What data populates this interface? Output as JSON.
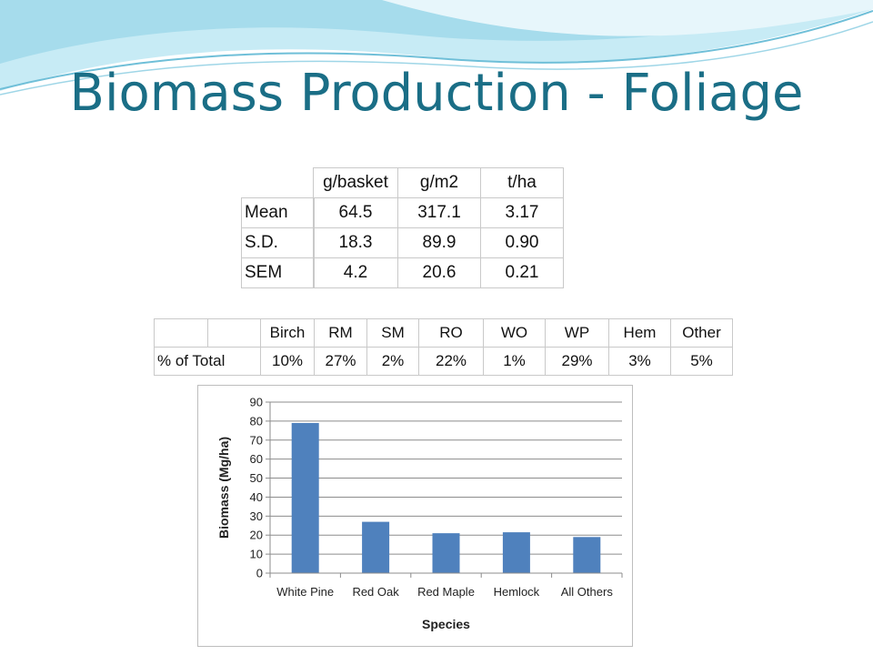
{
  "slide": {
    "title": "Biomass Production - Foliage",
    "colors": {
      "title": "#1a6e86",
      "wave_light": "#bfe6f2",
      "wave_mid": "#8fd0e6",
      "bar": "#4f81bd"
    }
  },
  "stats_table": {
    "headers": [
      "g/basket",
      "g/m2",
      "t/ha"
    ],
    "rows": [
      {
        "label": "Mean",
        "values": [
          "64.5",
          "317.1",
          "3.17"
        ]
      },
      {
        "label": "S.D.",
        "values": [
          "18.3",
          "89.9",
          "0.90"
        ]
      },
      {
        "label": "SEM",
        "values": [
          "4.2",
          "20.6",
          "0.21"
        ]
      }
    ]
  },
  "species_table": {
    "headers": [
      "",
      "",
      "Birch",
      "RM",
      "SM",
      "RO",
      "WO",
      "WP",
      "Hem",
      "Other"
    ],
    "row_label": "% of Total",
    "values": [
      "10%",
      "27%",
      "2%",
      "22%",
      "1%",
      "29%",
      "3%",
      "5%"
    ]
  },
  "chart_data": {
    "type": "bar",
    "categories": [
      "White Pine",
      "Red Oak",
      "Red Maple",
      "Hemlock",
      "All Others"
    ],
    "values": [
      79,
      27,
      21,
      21.5,
      19
    ],
    "xlabel": "Species",
    "ylabel": "Biomass (Mg/ha)",
    "ylim": [
      0,
      90
    ],
    "yticks": [
      "0",
      "10",
      "20",
      "30",
      "40",
      "50",
      "60",
      "70",
      "80",
      "90"
    ],
    "grid": true,
    "legend": "none"
  }
}
